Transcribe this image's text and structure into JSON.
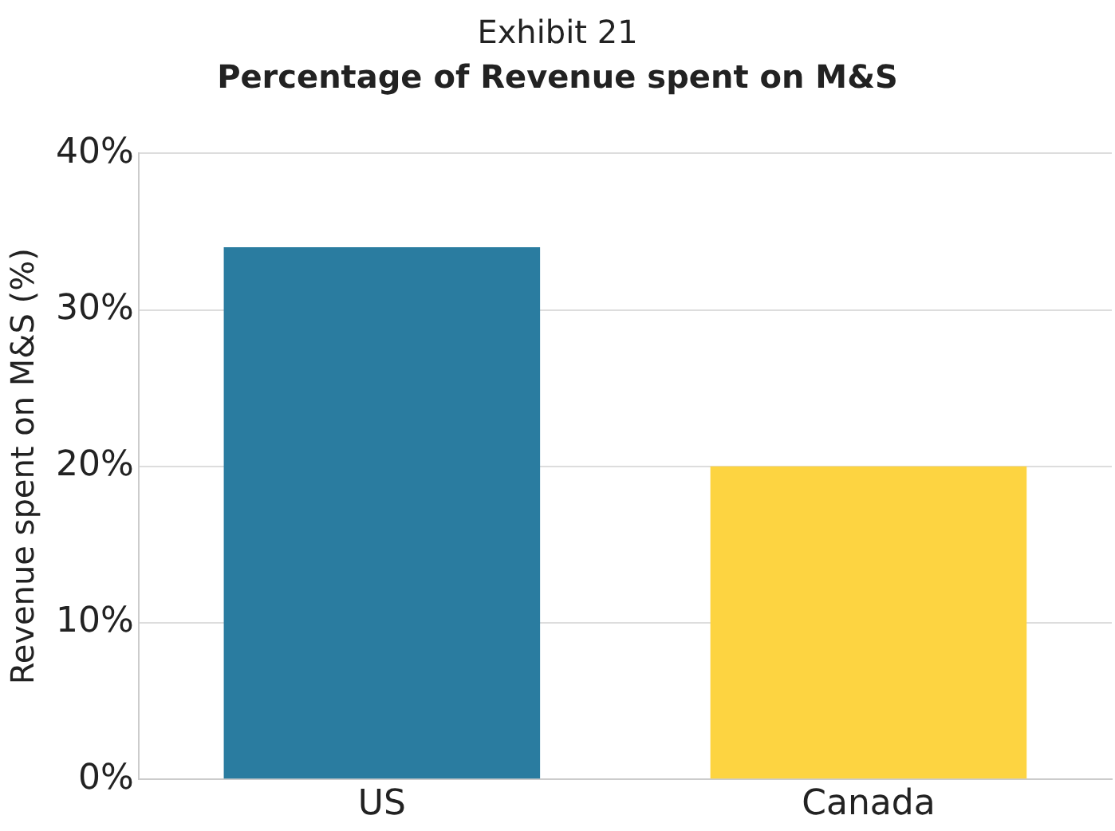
{
  "chart_data": {
    "type": "bar",
    "title": "Exhibit 21",
    "subtitle": "Percentage of Revenue spent on M&S",
    "ylabel": "Revenue spent on M&S (%)",
    "categories": [
      "US",
      "Canada"
    ],
    "values": [
      34,
      20
    ],
    "colors": [
      "#2a7ca0",
      "#fdd441"
    ],
    "ylim": [
      0,
      40
    ],
    "yticks": [
      {
        "value": 0,
        "label": "0%"
      },
      {
        "value": 10,
        "label": "10%"
      },
      {
        "value": 20,
        "label": "20%"
      },
      {
        "value": 30,
        "label": "30%"
      },
      {
        "value": 40,
        "label": "40%"
      }
    ],
    "grid": "y",
    "legend": false
  }
}
